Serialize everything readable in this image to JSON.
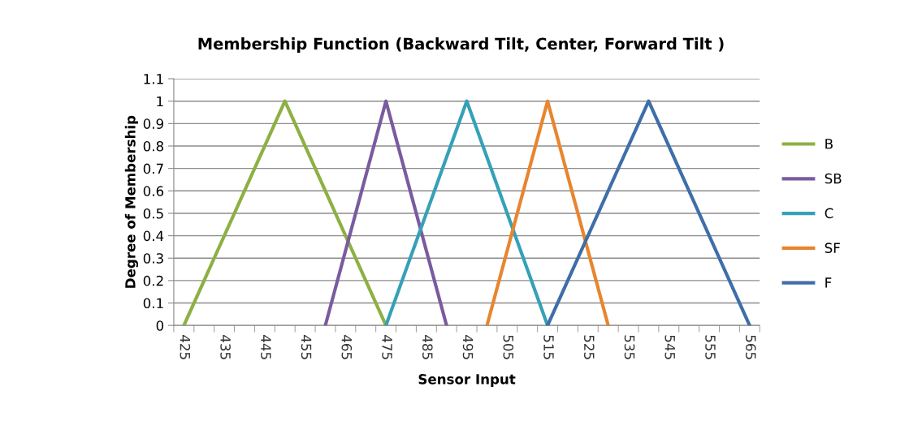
{
  "chart_data": {
    "type": "line",
    "title": "Membership Function (Backward Tilt, Center, Forward Tilt )",
    "xlabel": "Sensor Input",
    "ylabel": "Degree of Membership",
    "series": [
      {
        "name": "B",
        "color": "#8db043",
        "x": [
          425,
          450,
          475
        ],
        "values": [
          0,
          1,
          0
        ]
      },
      {
        "name": "SB",
        "color": "#7a5b9f",
        "x": [
          460,
          475,
          490
        ],
        "values": [
          0,
          1,
          0
        ]
      },
      {
        "name": "C",
        "color": "#35a1b7",
        "x": [
          475,
          495,
          515
        ],
        "values": [
          0,
          1,
          0
        ]
      },
      {
        "name": "SF",
        "color": "#e8852f",
        "x": [
          500,
          515,
          530
        ],
        "values": [
          0,
          1,
          0
        ]
      },
      {
        "name": "F",
        "color": "#3f6ea9",
        "x": [
          515,
          540,
          565
        ],
        "values": [
          0,
          1,
          0
        ]
      }
    ],
    "xlim": [
      422.5,
      567.5
    ],
    "xticks": [
      {
        "value": 422.5,
        "label": null
      },
      425,
      {
        "value": 427.5,
        "label": null
      },
      {
        "value": 432.5,
        "label": null
      },
      435,
      {
        "value": 437.5,
        "label": null
      },
      {
        "value": 442.5,
        "label": null
      },
      445,
      {
        "value": 447.5,
        "label": null
      },
      {
        "value": 452.5,
        "label": null
      },
      455,
      {
        "value": 457.5,
        "label": null
      },
      {
        "value": 462.5,
        "label": null
      },
      465,
      {
        "value": 467.5,
        "label": null
      },
      {
        "value": 472.5,
        "label": null
      },
      475,
      {
        "value": 477.5,
        "label": null
      },
      {
        "value": 482.5,
        "label": null
      },
      485,
      {
        "value": 487.5,
        "label": null
      },
      {
        "value": 492.5,
        "label": null
      },
      495,
      {
        "value": 497.5,
        "label": null
      },
      {
        "value": 502.5,
        "label": null
      },
      505,
      {
        "value": 507.5,
        "label": null
      },
      {
        "value": 512.5,
        "label": null
      },
      515,
      {
        "value": 517.5,
        "label": null
      },
      {
        "value": 522.5,
        "label": null
      },
      525,
      {
        "value": 527.5,
        "label": null
      },
      {
        "value": 532.5,
        "label": null
      },
      535,
      {
        "value": 537.5,
        "label": null
      },
      {
        "value": 542.5,
        "label": null
      },
      545,
      {
        "value": 547.5,
        "label": null
      },
      {
        "value": 552.5,
        "label": null
      },
      555,
      {
        "value": 557.5,
        "label": null
      },
      {
        "value": 562.5,
        "label": null
      },
      565,
      {
        "value": 567.5,
        "label": null
      }
    ],
    "ylim": [
      0,
      1.1
    ],
    "yticks": [
      0,
      0.1,
      0.2,
      0.3,
      0.4,
      0.5,
      0.6,
      0.7,
      0.8,
      0.9,
      1,
      1.1
    ],
    "grid": "y",
    "legend": "right",
    "marker": "none",
    "line_style": "solid"
  }
}
